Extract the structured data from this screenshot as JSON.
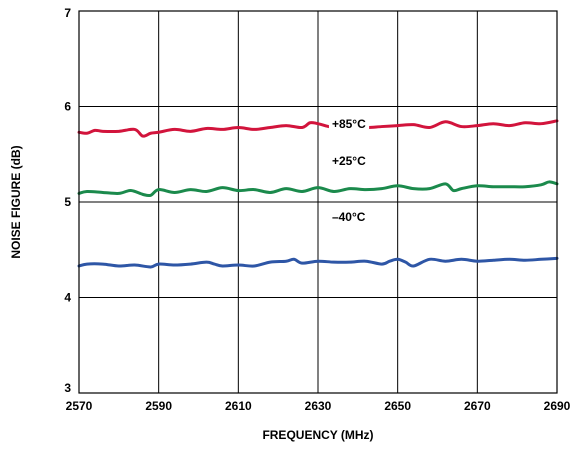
{
  "chart_data": {
    "type": "line",
    "title": "",
    "xlabel": "FREQUENCY (MHz)",
    "ylabel": "NOISE FIGURE (dB)",
    "xlim": [
      2570,
      2690
    ],
    "ylim": [
      3,
      7
    ],
    "xticks": [
      2570,
      2590,
      2610,
      2630,
      2650,
      2670,
      2690
    ],
    "xtick_labels": [
      "2570",
      "2590",
      "2610",
      "2630",
      "2650",
      "2670",
      "2690"
    ],
    "yticks": [
      3,
      4,
      5,
      6,
      7
    ],
    "ytick_labels": [
      "3",
      "4",
      "5",
      "6",
      "7"
    ],
    "grid": true,
    "legend": "none (series labeled inline)",
    "series": [
      {
        "name": "+85°C",
        "color": "#d2143c",
        "x": [
          2570,
          2572,
          2574,
          2576,
          2580,
          2584,
          2586,
          2588,
          2590,
          2594,
          2598,
          2602,
          2606,
          2610,
          2614,
          2618,
          2622,
          2626,
          2628,
          2630,
          2634,
          2638,
          2642,
          2646,
          2650,
          2654,
          2658,
          2662,
          2666,
          2670,
          2674,
          2678,
          2682,
          2686,
          2690
        ],
        "y": [
          5.73,
          5.72,
          5.75,
          5.74,
          5.74,
          5.76,
          5.69,
          5.72,
          5.73,
          5.76,
          5.74,
          5.77,
          5.76,
          5.78,
          5.76,
          5.78,
          5.8,
          5.78,
          5.83,
          5.82,
          5.78,
          5.8,
          5.78,
          5.79,
          5.8,
          5.81,
          5.78,
          5.84,
          5.79,
          5.8,
          5.82,
          5.8,
          5.83,
          5.82,
          5.85
        ]
      },
      {
        "name": "+25°C",
        "color": "#1b8a4c",
        "x": [
          2570,
          2572,
          2576,
          2580,
          2583,
          2586,
          2588,
          2590,
          2594,
          2598,
          2602,
          2606,
          2610,
          2614,
          2618,
          2622,
          2626,
          2630,
          2634,
          2638,
          2642,
          2646,
          2650,
          2654,
          2658,
          2662,
          2664,
          2666,
          2670,
          2674,
          2678,
          2682,
          2686,
          2688,
          2690
        ],
        "y": [
          5.09,
          5.11,
          5.1,
          5.09,
          5.12,
          5.08,
          5.07,
          5.13,
          5.1,
          5.13,
          5.11,
          5.15,
          5.12,
          5.13,
          5.1,
          5.14,
          5.11,
          5.15,
          5.11,
          5.14,
          5.13,
          5.14,
          5.17,
          5.14,
          5.14,
          5.19,
          5.12,
          5.14,
          5.17,
          5.16,
          5.16,
          5.16,
          5.18,
          5.21,
          5.19
        ]
      },
      {
        "name": "–40°C",
        "color": "#2e56a6",
        "x": [
          2570,
          2572,
          2576,
          2580,
          2584,
          2588,
          2590,
          2594,
          2598,
          2602,
          2604,
          2606,
          2610,
          2614,
          2618,
          2622,
          2624,
          2626,
          2630,
          2634,
          2638,
          2642,
          2646,
          2648,
          2650,
          2652,
          2654,
          2658,
          2662,
          2666,
          2670,
          2674,
          2678,
          2682,
          2686,
          2690
        ],
        "y": [
          4.33,
          4.35,
          4.35,
          4.33,
          4.34,
          4.32,
          4.35,
          4.34,
          4.35,
          4.37,
          4.35,
          4.33,
          4.34,
          4.33,
          4.37,
          4.38,
          4.4,
          4.36,
          4.38,
          4.37,
          4.37,
          4.38,
          4.35,
          4.38,
          4.4,
          4.37,
          4.33,
          4.4,
          4.38,
          4.4,
          4.38,
          4.39,
          4.4,
          4.39,
          4.4,
          4.41
        ]
      }
    ]
  }
}
